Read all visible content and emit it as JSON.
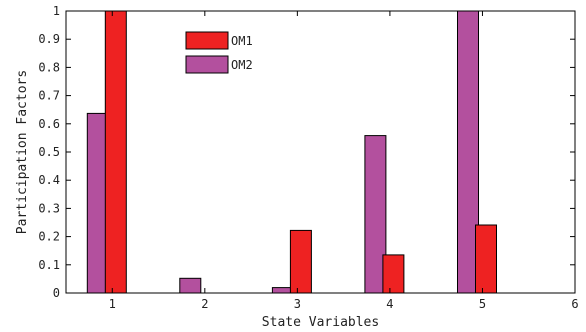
{
  "chart_data": {
    "type": "bar",
    "xlabel": "State Variables",
    "ylabel": "Participation Factors",
    "xlim": [
      0.5,
      6
    ],
    "ylim": [
      0,
      1
    ],
    "xticks": [
      "1",
      "2",
      "3",
      "4",
      "5",
      "6"
    ],
    "yticks": [
      "0",
      "0.1",
      "0.2",
      "0.3",
      "0.4",
      "0.5",
      "0.6",
      "0.7",
      "0.8",
      "0.9",
      "1"
    ],
    "grid": false,
    "legend_position": "top-left",
    "categories": [
      1,
      2,
      3,
      4,
      5,
      6
    ],
    "series": [
      {
        "name": "OM1",
        "color": "#ee2222",
        "values": [
          1.0,
          0.0,
          0.222,
          0.135,
          0.241,
          0.0
        ]
      },
      {
        "name": "OM2",
        "color": "#b3509e",
        "values": [
          0.637,
          0.052,
          0.019,
          0.558,
          1.0,
          0.0
        ]
      }
    ]
  }
}
